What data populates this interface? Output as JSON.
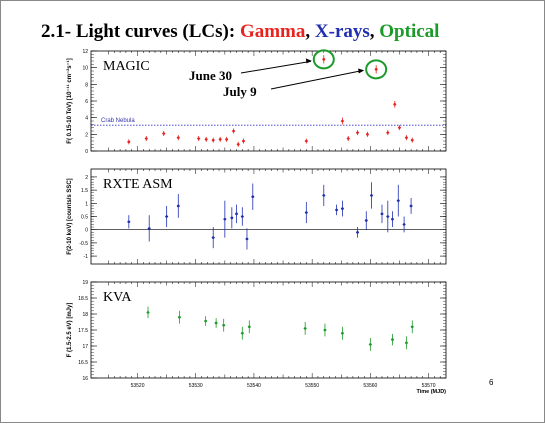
{
  "slide": {
    "title_prefix": "2.1- Light curves (LCs): ",
    "title_gamma": "Gamma",
    "title_sep": ", ",
    "title_xrays": "X-rays",
    "title_sep2": ", ",
    "title_optical": "Optical",
    "page_number": "6",
    "colors": {
      "gamma": "#e8231f",
      "xrays": "#1f2fb0",
      "optical": "#1c9a2a"
    }
  },
  "annotations": {
    "june30": "June 30",
    "july9": "July 9"
  },
  "chart_data": [
    {
      "type": "scatter",
      "panel_label": "MAGIC",
      "ylabel": "F( 0.15-10 TeV) [10⁻¹¹ cm⁻²s⁻¹]",
      "ylim": [
        0,
        12
      ],
      "yticks": [
        0,
        2,
        4,
        6,
        8,
        10,
        12
      ],
      "xlim": [
        53512,
        53573
      ],
      "color": "#e8231f",
      "reference_line": {
        "label": "Crab Nebula",
        "y": 3.1,
        "color": "#3333cc"
      },
      "points": [
        {
          "x": 53518.5,
          "y": 1.1,
          "e": 0.3
        },
        {
          "x": 53521.5,
          "y": 1.5,
          "e": 0.3
        },
        {
          "x": 53524.5,
          "y": 2.1,
          "e": 0.3
        },
        {
          "x": 53527,
          "y": 1.6,
          "e": 0.3
        },
        {
          "x": 53530.5,
          "y": 1.5,
          "e": 0.3
        },
        {
          "x": 53531.8,
          "y": 1.4,
          "e": 0.3
        },
        {
          "x": 53533,
          "y": 1.3,
          "e": 0.3
        },
        {
          "x": 53534.2,
          "y": 1.4,
          "e": 0.3
        },
        {
          "x": 53535.3,
          "y": 1.4,
          "e": 0.3
        },
        {
          "x": 53536.5,
          "y": 2.4,
          "e": 0.3
        },
        {
          "x": 53537.3,
          "y": 0.8,
          "e": 0.3
        },
        {
          "x": 53538.2,
          "y": 1.2,
          "e": 0.3
        },
        {
          "x": 53549,
          "y": 1.2,
          "e": 0.3
        },
        {
          "x": 53552,
          "y": 11.0,
          "e": 0.5
        },
        {
          "x": 53555.2,
          "y": 3.6,
          "e": 0.4
        },
        {
          "x": 53556.2,
          "y": 1.5,
          "e": 0.3
        },
        {
          "x": 53557.8,
          "y": 2.2,
          "e": 0.3
        },
        {
          "x": 53559.5,
          "y": 2.0,
          "e": 0.3
        },
        {
          "x": 53561,
          "y": 9.8,
          "e": 0.5
        },
        {
          "x": 53563,
          "y": 2.2,
          "e": 0.3
        },
        {
          "x": 53564.2,
          "y": 5.6,
          "e": 0.4
        },
        {
          "x": 53565,
          "y": 2.8,
          "e": 0.3
        },
        {
          "x": 53566.2,
          "y": 1.6,
          "e": 0.3
        },
        {
          "x": 53567.2,
          "y": 1.3,
          "e": 0.3
        }
      ]
    },
    {
      "type": "scatter",
      "panel_label": "RXTE ASM",
      "ylabel": "F(2-10 keV) [counts/s SSC]",
      "ylim": [
        -1.3,
        2.3
      ],
      "yticks": [
        -1,
        -0.5,
        0,
        0.5,
        1,
        1.5,
        2
      ],
      "xlim": [
        53512,
        53573
      ],
      "color": "#1f2fb0",
      "reference_line": {
        "y": 0
      },
      "points": [
        {
          "x": 53518.5,
          "y": 0.3,
          "e": 0.25
        },
        {
          "x": 53522,
          "y": 0.05,
          "e": 0.5
        },
        {
          "x": 53525,
          "y": 0.5,
          "e": 0.4
        },
        {
          "x": 53527,
          "y": 0.9,
          "e": 0.45
        },
        {
          "x": 53533,
          "y": -0.3,
          "e": 0.4
        },
        {
          "x": 53535,
          "y": 0.4,
          "e": 0.7
        },
        {
          "x": 53536.2,
          "y": 0.45,
          "e": 0.4
        },
        {
          "x": 53537,
          "y": 0.6,
          "e": 0.35
        },
        {
          "x": 53538,
          "y": 0.5,
          "e": 0.35
        },
        {
          "x": 53538.8,
          "y": -0.35,
          "e": 0.4
        },
        {
          "x": 53539.8,
          "y": 1.25,
          "e": 0.5
        },
        {
          "x": 53549,
          "y": 0.65,
          "e": 0.4
        },
        {
          "x": 53552,
          "y": 1.3,
          "e": 0.4
        },
        {
          "x": 53554.2,
          "y": 0.75,
          "e": 0.2
        },
        {
          "x": 53555.2,
          "y": 0.8,
          "e": 0.3
        },
        {
          "x": 53557.8,
          "y": -0.1,
          "e": 0.2
        },
        {
          "x": 53559.3,
          "y": 0.35,
          "e": 0.35
        },
        {
          "x": 53560.2,
          "y": 1.3,
          "e": 0.5
        },
        {
          "x": 53562,
          "y": 0.6,
          "e": 0.35
        },
        {
          "x": 53563,
          "y": 0.5,
          "e": 0.6
        },
        {
          "x": 53563.8,
          "y": 0.4,
          "e": 0.3
        },
        {
          "x": 53564.8,
          "y": 1.1,
          "e": 0.6
        },
        {
          "x": 53565.8,
          "y": 0.2,
          "e": 0.3
        },
        {
          "x": 53567,
          "y": 0.9,
          "e": 0.3
        }
      ]
    },
    {
      "type": "scatter",
      "panel_label": "KVA",
      "ylabel": "F (1.5-2.5 eV) [mJy]",
      "ylim": [
        16,
        19
      ],
      "yticks": [
        16,
        16.5,
        17,
        17.5,
        18,
        18.5,
        19
      ],
      "xlim": [
        53512,
        53573
      ],
      "xticks": [
        53520,
        53530,
        53540,
        53550,
        53560,
        53570
      ],
      "xlabel": "Time (MJD)",
      "color": "#1c9a2a",
      "points": [
        {
          "x": 53521.8,
          "y": 18.05,
          "e": 0.18
        },
        {
          "x": 53527.2,
          "y": 17.9,
          "e": 0.2
        },
        {
          "x": 53531.7,
          "y": 17.78,
          "e": 0.15
        },
        {
          "x": 53533.5,
          "y": 17.72,
          "e": 0.15
        },
        {
          "x": 53534.8,
          "y": 17.65,
          "e": 0.2
        },
        {
          "x": 53538,
          "y": 17.4,
          "e": 0.2
        },
        {
          "x": 53539.2,
          "y": 17.6,
          "e": 0.2
        },
        {
          "x": 53548.8,
          "y": 17.55,
          "e": 0.2
        },
        {
          "x": 53552.2,
          "y": 17.5,
          "e": 0.2
        },
        {
          "x": 53555.2,
          "y": 17.4,
          "e": 0.2
        },
        {
          "x": 53560,
          "y": 17.05,
          "e": 0.2
        },
        {
          "x": 53563.8,
          "y": 17.2,
          "e": 0.18
        },
        {
          "x": 53566.2,
          "y": 17.1,
          "e": 0.2
        },
        {
          "x": 53567.2,
          "y": 17.6,
          "e": 0.2
        }
      ]
    }
  ]
}
